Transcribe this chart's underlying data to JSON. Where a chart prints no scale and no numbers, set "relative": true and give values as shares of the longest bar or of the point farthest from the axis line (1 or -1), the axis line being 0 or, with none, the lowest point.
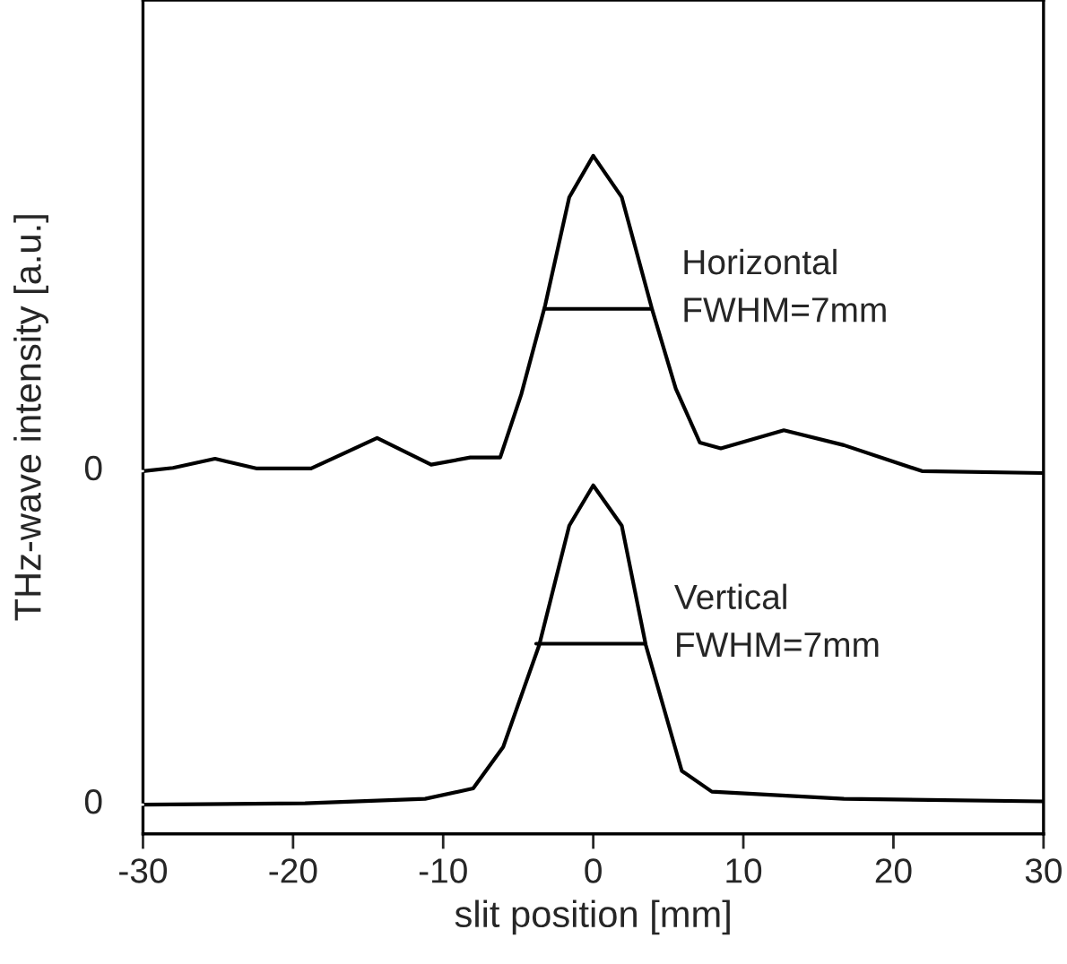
{
  "chart_data": {
    "type": "line",
    "relative": true,
    "xlabel": "slit position [mm]",
    "ylabel": "THz-wave intensity [a.u.]",
    "xlim": [
      -30,
      30
    ],
    "xticks": [
      -30,
      -20,
      -10,
      0,
      10,
      20,
      30
    ],
    "series": [
      {
        "color": "#000000",
        "x": [
          -30,
          -28,
          -25.2,
          -22.4,
          -18.8,
          -14.4,
          -10.8,
          -8.2,
          -6.2,
          -4.8,
          -3.2,
          -1.6,
          0,
          1.9,
          3.9,
          5.5,
          7.1,
          8.5,
          12.7,
          16.7,
          21.9,
          30
        ],
        "values": [
          0.514,
          0.519,
          0.533,
          0.518,
          0.518,
          0.565,
          0.524,
          0.535,
          0.535,
          0.632,
          0.77,
          0.936,
          1.0,
          0.936,
          0.765,
          0.641,
          0.558,
          0.549,
          0.577,
          0.554,
          0.514,
          0.511
        ]
      },
      {
        "color": "#000000",
        "x": [
          -30,
          -19.2,
          -11.2,
          -8,
          -6,
          -3.6,
          -1.6,
          0,
          1.9,
          3.5,
          5.9,
          7.9,
          16.7,
          30
        ],
        "values": [
          0,
          0.002,
          0.009,
          0.025,
          0.089,
          0.246,
          0.43,
          0.492,
          0.43,
          0.246,
          0.052,
          0.02,
          0.009,
          0.005
        ]
      },
      {
        "color": "#000000",
        "x": [
          -3.2,
          3.9
        ],
        "values": [
          0.764,
          0.764
        ]
      },
      {
        "color": "#000000",
        "x": [
          -3.8,
          3.4
        ],
        "values": [
          0.248,
          0.248
        ]
      }
    ],
    "annotations": [
      {
        "text": "0",
        "x": -30,
        "y": 0.514
      },
      {
        "text": "0",
        "x": -30,
        "y": 0
      },
      {
        "text": "Horizontal\nFWHM=7mm",
        "x": 3.9,
        "y": 0.764
      },
      {
        "text": "Vertical\nFWHM=7mm",
        "x": 3.4,
        "y": 0.248
      }
    ],
    "grid": false,
    "legend": false,
    "marker": "none",
    "line_style": "solid"
  }
}
